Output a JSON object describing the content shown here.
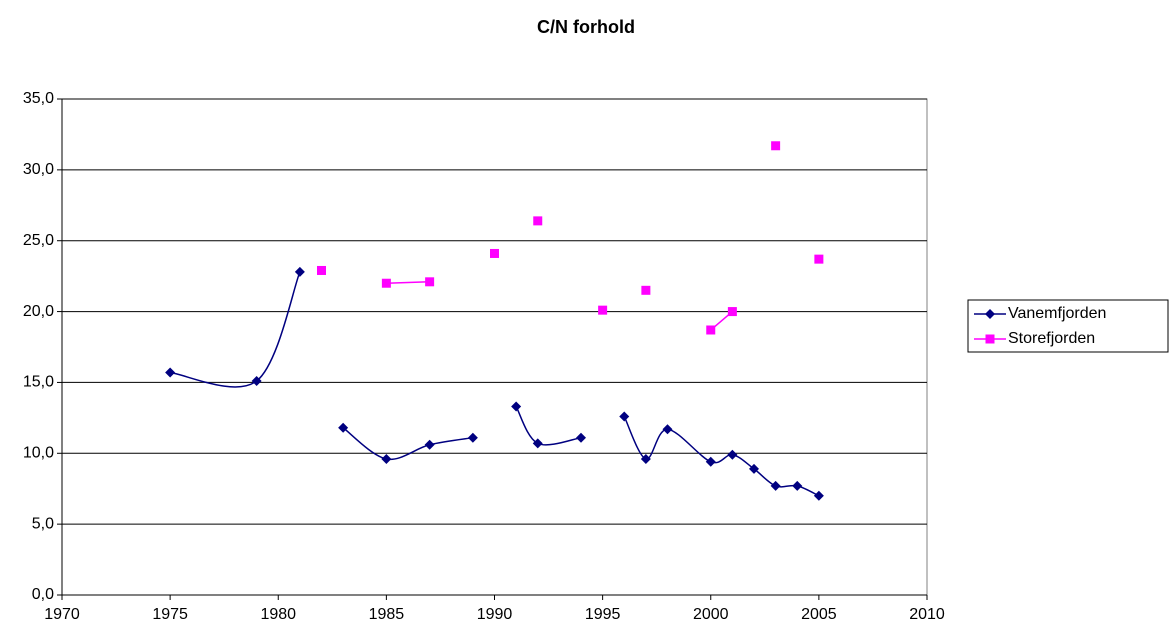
{
  "chart_data": {
    "type": "line",
    "title": "C/N forhold",
    "xlim": [
      1970,
      2010
    ],
    "xticks": [
      1970,
      1975,
      1980,
      1985,
      1990,
      1995,
      2000,
      2005,
      2010
    ],
    "ylim": [
      0,
      35
    ],
    "yticks": [
      {
        "value": 0,
        "label": "0,0"
      },
      {
        "value": 5,
        "label": "5,0"
      },
      {
        "value": 10,
        "label": "10,0"
      },
      {
        "value": 15,
        "label": "15,0"
      },
      {
        "value": 20,
        "label": "20,0"
      },
      {
        "value": 25,
        "label": "25,0"
      },
      {
        "value": 30,
        "label": "30,0"
      },
      {
        "value": 35,
        "label": "35,0"
      }
    ],
    "grid": true,
    "legend": "right",
    "series": [
      {
        "name": "Vanemfjorden",
        "color": "#000080",
        "marker": "diamond",
        "x": [
          1975,
          1979,
          1981,
          1982,
          1983,
          1985,
          1987,
          1989,
          1990,
          1991,
          1992,
          1994,
          1995,
          1996,
          1997,
          1998,
          2000,
          2001,
          2002,
          2003,
          2004,
          2005
        ],
        "values": [
          15.7,
          15.1,
          22.8,
          null,
          11.8,
          9.6,
          10.6,
          11.1,
          null,
          13.3,
          10.7,
          11.1,
          null,
          12.6,
          9.6,
          11.7,
          9.4,
          9.9,
          8.9,
          7.7,
          7.7,
          7.0
        ]
      },
      {
        "name": "Storefjorden",
        "color": "#ff00ff",
        "marker": "square",
        "x": [
          1982,
          1983,
          1985,
          1987,
          1989,
          1990,
          1991,
          1992,
          1993,
          1995,
          1996,
          1997,
          1998,
          2000,
          2001,
          2002,
          2003,
          2004,
          2005
        ],
        "values": [
          22.9,
          null,
          22.0,
          22.1,
          null,
          24.1,
          null,
          26.4,
          null,
          20.1,
          null,
          21.5,
          null,
          18.7,
          20.0,
          null,
          31.7,
          null,
          23.7
        ]
      }
    ]
  }
}
